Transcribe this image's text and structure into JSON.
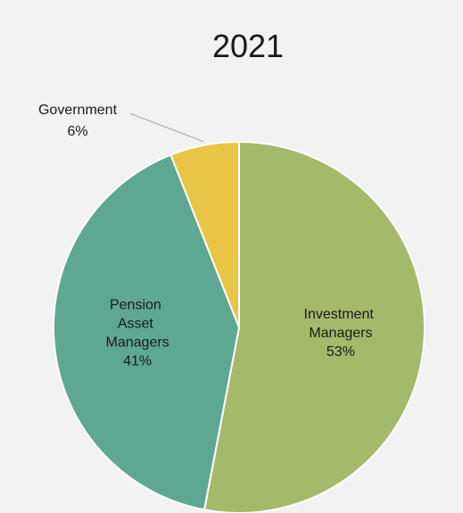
{
  "chart_data": {
    "type": "pie",
    "title": "2021",
    "categories": [
      "Investment Managers",
      "Pension Asset Managers",
      "Government"
    ],
    "values": [
      53,
      41,
      6
    ],
    "value_labels": [
      "53%",
      "41%",
      "6%"
    ],
    "colors": [
      "#a5b96b",
      "#5ea893",
      "#e8c547"
    ]
  }
}
